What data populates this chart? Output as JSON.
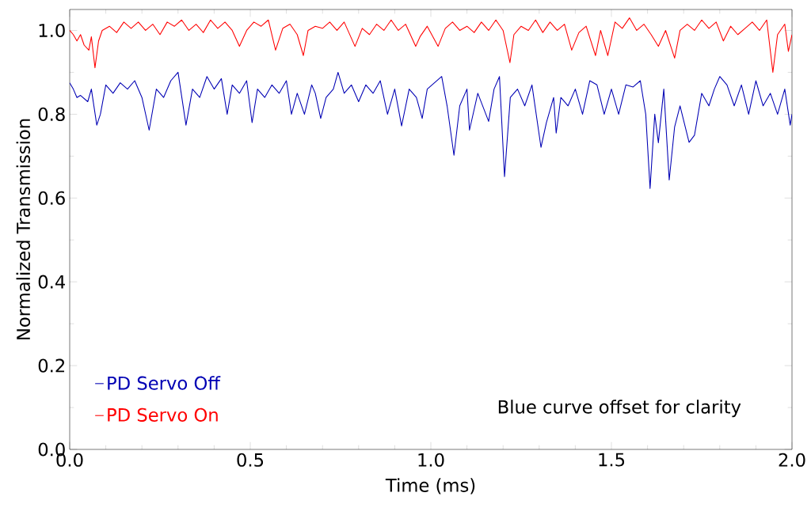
{
  "chart_data": {
    "type": "line",
    "xlabel": "Time (ms)",
    "ylabel": "Normalized Transmission",
    "xlim": [
      0,
      2
    ],
    "ylim": [
      0,
      1.05
    ],
    "xticks": [
      {
        "value": 0,
        "label": "0.0"
      },
      {
        "value": 0.5,
        "label": "0.5"
      },
      {
        "value": 1,
        "label": "1.0"
      },
      {
        "value": 1.5,
        "label": "1.5"
      },
      {
        "value": 2,
        "label": "2.0"
      }
    ],
    "yticks": [
      {
        "value": 0,
        "label": "0.0"
      },
      {
        "value": 0.2,
        "label": "0.2"
      },
      {
        "value": 0.4,
        "label": "0.4"
      },
      {
        "value": 0.6,
        "label": "0.6"
      },
      {
        "value": 0.8,
        "label": "0.8"
      },
      {
        "value": 1,
        "label": "1.0"
      }
    ],
    "legend": "bottom left",
    "annotations": [
      "Blue curve offset for clarity"
    ],
    "series": [
      {
        "name": "PD Servo Off",
        "color": "#0000b4",
        "x": [
          0.0,
          0.01,
          0.02,
          0.03,
          0.05,
          0.06,
          0.075,
          0.085,
          0.1,
          0.12,
          0.14,
          0.16,
          0.18,
          0.2,
          0.22,
          0.24,
          0.26,
          0.28,
          0.3,
          0.322,
          0.34,
          0.36,
          0.38,
          0.4,
          0.42,
          0.436,
          0.45,
          0.47,
          0.49,
          0.505,
          0.52,
          0.54,
          0.56,
          0.58,
          0.6,
          0.614,
          0.63,
          0.65,
          0.67,
          0.68,
          0.695,
          0.71,
          0.73,
          0.743,
          0.76,
          0.78,
          0.8,
          0.82,
          0.84,
          0.86,
          0.88,
          0.9,
          0.919,
          0.94,
          0.96,
          0.976,
          0.99,
          1.01,
          1.03,
          1.045,
          1.064,
          1.08,
          1.1,
          1.107,
          1.13,
          1.16,
          1.175,
          1.19,
          1.204,
          1.22,
          1.24,
          1.26,
          1.28,
          1.305,
          1.32,
          1.34,
          1.347,
          1.36,
          1.38,
          1.4,
          1.42,
          1.44,
          1.46,
          1.48,
          1.5,
          1.52,
          1.54,
          1.56,
          1.58,
          1.595,
          1.607,
          1.62,
          1.63,
          1.645,
          1.66,
          1.675,
          1.69,
          1.715,
          1.73,
          1.75,
          1.77,
          1.785,
          1.8,
          1.82,
          1.84,
          1.86,
          1.88,
          1.9,
          1.92,
          1.94,
          1.96,
          1.98,
          1.995,
          2.0
        ],
        "values": [
          0.875,
          0.86,
          0.84,
          0.845,
          0.83,
          0.86,
          0.774,
          0.8,
          0.87,
          0.85,
          0.875,
          0.86,
          0.88,
          0.84,
          0.762,
          0.86,
          0.84,
          0.88,
          0.9,
          0.774,
          0.86,
          0.84,
          0.89,
          0.86,
          0.885,
          0.8,
          0.87,
          0.85,
          0.88,
          0.78,
          0.86,
          0.84,
          0.87,
          0.85,
          0.88,
          0.8,
          0.85,
          0.8,
          0.87,
          0.85,
          0.79,
          0.84,
          0.86,
          0.9,
          0.85,
          0.87,
          0.83,
          0.87,
          0.85,
          0.88,
          0.8,
          0.86,
          0.772,
          0.86,
          0.84,
          0.79,
          0.86,
          0.875,
          0.89,
          0.82,
          0.702,
          0.82,
          0.86,
          0.762,
          0.85,
          0.783,
          0.86,
          0.89,
          0.651,
          0.84,
          0.86,
          0.82,
          0.87,
          0.721,
          0.78,
          0.84,
          0.755,
          0.84,
          0.82,
          0.86,
          0.8,
          0.88,
          0.87,
          0.8,
          0.86,
          0.8,
          0.87,
          0.865,
          0.88,
          0.8,
          0.623,
          0.8,
          0.732,
          0.86,
          0.643,
          0.77,
          0.82,
          0.733,
          0.75,
          0.85,
          0.82,
          0.86,
          0.89,
          0.87,
          0.82,
          0.87,
          0.8,
          0.88,
          0.82,
          0.85,
          0.8,
          0.86,
          0.774,
          0.8
        ]
      },
      {
        "name": "PD Servo On",
        "color": "#ff0000",
        "x": [
          0.0,
          0.01,
          0.02,
          0.03,
          0.04,
          0.053,
          0.06,
          0.07,
          0.08,
          0.09,
          0.11,
          0.13,
          0.15,
          0.17,
          0.19,
          0.21,
          0.23,
          0.25,
          0.27,
          0.29,
          0.31,
          0.33,
          0.35,
          0.37,
          0.39,
          0.41,
          0.43,
          0.45,
          0.47,
          0.49,
          0.51,
          0.53,
          0.55,
          0.57,
          0.59,
          0.61,
          0.63,
          0.647,
          0.66,
          0.68,
          0.7,
          0.72,
          0.74,
          0.76,
          0.79,
          0.81,
          0.83,
          0.85,
          0.87,
          0.89,
          0.91,
          0.93,
          0.958,
          0.97,
          0.99,
          1.02,
          1.04,
          1.06,
          1.08,
          1.1,
          1.12,
          1.14,
          1.16,
          1.18,
          1.2,
          1.219,
          1.23,
          1.25,
          1.27,
          1.29,
          1.31,
          1.33,
          1.35,
          1.37,
          1.39,
          1.41,
          1.43,
          1.456,
          1.47,
          1.49,
          1.51,
          1.53,
          1.55,
          1.57,
          1.59,
          1.61,
          1.63,
          1.65,
          1.675,
          1.69,
          1.71,
          1.73,
          1.75,
          1.77,
          1.79,
          1.81,
          1.83,
          1.85,
          1.87,
          1.89,
          1.91,
          1.93,
          1.947,
          1.96,
          1.98,
          1.99,
          2.0
        ],
        "values": [
          1.0,
          0.99,
          0.975,
          0.99,
          0.965,
          0.953,
          0.985,
          0.911,
          0.975,
          1.0,
          1.01,
          0.995,
          1.02,
          1.005,
          1.02,
          1.0,
          1.015,
          0.99,
          1.02,
          1.01,
          1.025,
          1.0,
          1.015,
          0.995,
          1.025,
          1.005,
          1.02,
          1.0,
          0.962,
          1.0,
          1.02,
          1.01,
          1.025,
          0.953,
          1.005,
          1.015,
          0.99,
          0.94,
          1.0,
          1.01,
          1.005,
          1.02,
          1.0,
          1.02,
          0.962,
          1.005,
          0.99,
          1.015,
          1.0,
          1.025,
          1.0,
          1.015,
          0.962,
          0.985,
          1.01,
          0.962,
          1.005,
          1.02,
          1.0,
          1.01,
          0.995,
          1.02,
          1.0,
          1.025,
          1.0,
          0.923,
          0.99,
          1.01,
          1.0,
          1.025,
          0.995,
          1.02,
          1.0,
          1.015,
          0.953,
          0.995,
          1.01,
          0.94,
          1.0,
          0.94,
          1.02,
          1.005,
          1.03,
          1.0,
          1.015,
          0.99,
          0.962,
          1.0,
          0.934,
          1.0,
          1.015,
          1.0,
          1.025,
          1.005,
          1.02,
          0.975,
          1.01,
          0.99,
          1.005,
          1.02,
          1.0,
          1.025,
          0.9,
          0.99,
          1.015,
          0.95,
          0.99
        ]
      }
    ]
  }
}
